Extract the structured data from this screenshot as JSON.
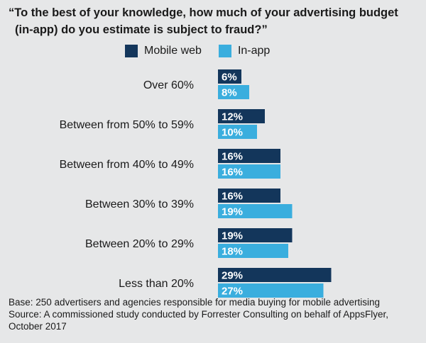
{
  "chart_data": {
    "type": "bar",
    "orientation": "horizontal",
    "title_line1": "“To the best of your knowledge, how much of your advertising budget",
    "title_line2": "(in-app) do you estimate is subject to fraud?”",
    "categories": [
      "Over 60%",
      "Between from 50% to 59%",
      "Between from 40% to 49%",
      "Between 30% to 39%",
      "Between 20% to 29%",
      "Less than 20%"
    ],
    "series": [
      {
        "name": "Mobile web",
        "color": "#13365b",
        "values": [
          6,
          12,
          16,
          16,
          19,
          29
        ]
      },
      {
        "name": "In-app",
        "color": "#3aaede",
        "values": [
          8,
          10,
          16,
          19,
          18,
          27
        ]
      }
    ],
    "value_suffix": "%",
    "xlim": [
      0,
      30
    ],
    "grid": false,
    "legend_position": "top"
  },
  "footer": {
    "base": "Base: 250 advertisers and agencies responsible for media buying for mobile advertising",
    "source_line1": "Source: A commissioned study conducted by Forrester Consulting on behalf of AppsFlyer,",
    "source_line2": "October 2017"
  }
}
